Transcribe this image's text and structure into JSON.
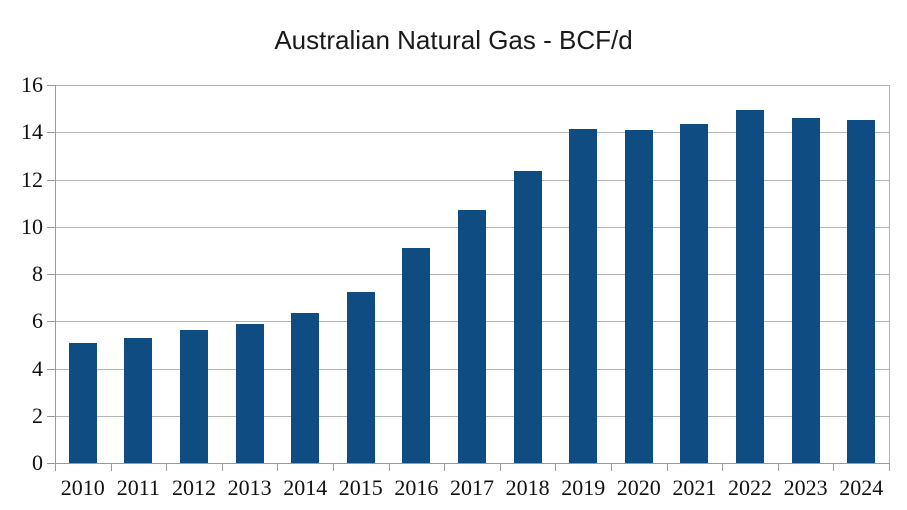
{
  "chart_data": {
    "type": "bar",
    "title": "Australian Natural Gas - BCF/d",
    "categories": [
      "2010",
      "2011",
      "2012",
      "2013",
      "2014",
      "2015",
      "2016",
      "2017",
      "2018",
      "2019",
      "2020",
      "2021",
      "2022",
      "2023",
      "2024"
    ],
    "values": [
      5.1,
      5.3,
      5.65,
      5.9,
      6.35,
      7.25,
      9.1,
      10.7,
      12.35,
      14.15,
      14.1,
      14.35,
      14.95,
      14.6,
      14.5
    ],
    "xlabel": "",
    "ylabel": "",
    "ylim": [
      0,
      16
    ],
    "yticks": [
      0,
      2,
      4,
      6,
      8,
      10,
      12,
      14,
      16
    ],
    "grid": "horizontal",
    "legend": "none",
    "colors": {
      "bar": "#0F4C81",
      "gridline": "#b4b4b4",
      "axis": "#9a9a9a",
      "text": "#111111",
      "title_text": "#1a1a1a",
      "background": "#ffffff"
    }
  }
}
